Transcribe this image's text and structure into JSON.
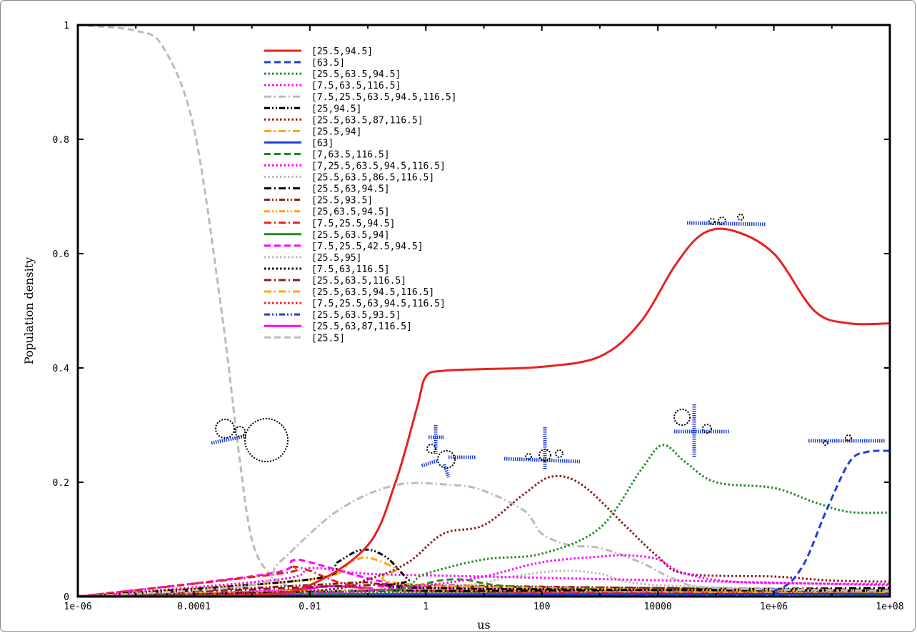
{
  "chart_data": {
    "type": "line",
    "xlabel": "us",
    "ylabel": "Population density",
    "xscale": "log",
    "xlim": [
      1e-06,
      100000000.0
    ],
    "ylim": [
      0,
      1
    ],
    "xticks": [
      "1e-06",
      "0.0001",
      "0.01",
      "1",
      "100",
      "10000",
      "1e+06",
      "1e+08"
    ],
    "yticks": [
      "0",
      "0.2",
      "0.4",
      "0.6",
      "0.8",
      "1"
    ],
    "legend_position": "top-left",
    "series": [
      {
        "name": "[25.5,94.5]",
        "color": "#e8211f",
        "dash": "solid",
        "points": [
          [
            1e-06,
            0.001
          ],
          [
            0.001,
            0.003
          ],
          [
            0.01,
            0.02
          ],
          [
            0.1,
            0.09
          ],
          [
            0.3,
            0.2
          ],
          [
            0.7,
            0.33
          ],
          [
            1,
            0.385
          ],
          [
            2,
            0.395
          ],
          [
            10,
            0.398
          ],
          [
            100,
            0.402
          ],
          [
            1000,
            0.42
          ],
          [
            5000,
            0.48
          ],
          [
            20000,
            0.58
          ],
          [
            60000,
            0.635
          ],
          [
            200000,
            0.64
          ],
          [
            1000000,
            0.6
          ],
          [
            5000000,
            0.5
          ],
          [
            20000000,
            0.478
          ],
          [
            100000000,
            0.478
          ]
        ]
      },
      {
        "name": "[63.5]",
        "color": "#1f3fd8",
        "dash": "dashed",
        "points": [
          [
            1e-06,
            0
          ],
          [
            100000,
            0.003
          ],
          [
            1000000,
            0.01
          ],
          [
            3000000,
            0.05
          ],
          [
            8000000,
            0.15
          ],
          [
            20000000,
            0.235
          ],
          [
            40000000,
            0.253
          ],
          [
            100000000,
            0.255
          ]
        ]
      },
      {
        "name": "[25.5,63.5,94.5]",
        "color": "#228b22",
        "dash": "dotted",
        "points": [
          [
            1e-06,
            0
          ],
          [
            0.1,
            0.005
          ],
          [
            1,
            0.04
          ],
          [
            10,
            0.065
          ],
          [
            100,
            0.075
          ],
          [
            1000,
            0.12
          ],
          [
            5000,
            0.22
          ],
          [
            12000,
            0.265
          ],
          [
            30000,
            0.235
          ],
          [
            100000,
            0.2
          ],
          [
            1000000,
            0.19
          ],
          [
            5000000,
            0.165
          ],
          [
            20000000,
            0.148
          ],
          [
            100000000,
            0.147
          ]
        ]
      },
      {
        "name": "[7.5,63.5,116.5]",
        "color": "#ff00ff",
        "dash": "dotted",
        "points": [
          [
            1e-06,
            0
          ],
          [
            0.01,
            0.005
          ],
          [
            1,
            0.02
          ],
          [
            10,
            0.035
          ],
          [
            100,
            0.06
          ],
          [
            1000,
            0.07
          ],
          [
            3000,
            0.072
          ],
          [
            10000,
            0.065
          ],
          [
            30000,
            0.04
          ],
          [
            300000,
            0.025
          ],
          [
            100000000,
            0.022
          ]
        ]
      },
      {
        "name": "[7.5,25.5,63.5,94.5,116.5]",
        "color": "#bbbbbb",
        "dash": "dashdot",
        "points": [
          [
            1e-06,
            0
          ],
          [
            0.001,
            0.02
          ],
          [
            0.003,
            0.06
          ],
          [
            0.03,
            0.15
          ],
          [
            0.3,
            0.195
          ],
          [
            3,
            0.195
          ],
          [
            10,
            0.185
          ],
          [
            50,
            0.15
          ],
          [
            100,
            0.11
          ],
          [
            300,
            0.09
          ],
          [
            1000,
            0.085
          ],
          [
            5000,
            0.06
          ],
          [
            20000,
            0.03
          ],
          [
            100000,
            0.015
          ],
          [
            100000000,
            0.01
          ]
        ]
      },
      {
        "name": "[25,94.5]",
        "color": "#000000",
        "dash": "dashdotdot",
        "points": [
          [
            1e-06,
            0
          ],
          [
            0.01,
            0.03
          ],
          [
            0.03,
            0.06
          ],
          [
            0.08,
            0.082
          ],
          [
            0.2,
            0.07
          ],
          [
            0.5,
            0.03
          ],
          [
            1,
            0.015
          ],
          [
            100000000,
            0.01
          ]
        ]
      },
      {
        "name": "[25.5,63.5,87,116.5]",
        "color": "#8b1a1a",
        "dash": "dotted",
        "points": [
          [
            1e-06,
            0
          ],
          [
            0.01,
            0.01
          ],
          [
            0.1,
            0.03
          ],
          [
            0.5,
            0.06
          ],
          [
            2,
            0.11
          ],
          [
            10,
            0.125
          ],
          [
            50,
            0.18
          ],
          [
            150,
            0.21
          ],
          [
            500,
            0.195
          ],
          [
            3000,
            0.12
          ],
          [
            10000,
            0.07
          ],
          [
            30000,
            0.04
          ],
          [
            1000000,
            0.035
          ],
          [
            10000000,
            0.028
          ],
          [
            100000000,
            0.026
          ]
        ]
      },
      {
        "name": "[25.5,94]",
        "color": "#ffa500",
        "dash": "dashdot",
        "points": [
          [
            1e-06,
            0
          ],
          [
            0.01,
            0.03
          ],
          [
            0.05,
            0.06
          ],
          [
            0.1,
            0.068
          ],
          [
            0.3,
            0.05
          ],
          [
            1,
            0.02
          ],
          [
            100000000,
            0.008
          ]
        ]
      },
      {
        "name": "[63]",
        "color": "#1f3fd8",
        "dash": "solid",
        "points": [
          [
            1e-06,
            0
          ],
          [
            1,
            0.003
          ],
          [
            100000000,
            0.005
          ]
        ]
      },
      {
        "name": "[7,63.5,116.5]",
        "color": "#228b22",
        "dash": "dashed",
        "points": [
          [
            1e-06,
            0
          ],
          [
            0.1,
            0.01
          ],
          [
            3,
            0.03
          ],
          [
            100,
            0.015
          ],
          [
            100000000,
            0.01
          ]
        ]
      },
      {
        "name": "[7,25.5,63.5,94.5,116.5]",
        "color": "#ff00ff",
        "dash": "dotted",
        "points": [
          [
            1e-06,
            0
          ],
          [
            0.003,
            0.03
          ],
          [
            0.01,
            0.05
          ],
          [
            0.1,
            0.04
          ],
          [
            10,
            0.035
          ],
          [
            100000000,
            0.02
          ]
        ]
      },
      {
        "name": "[25.5,63.5,86.5,116.5]",
        "color": "#bbbbbb",
        "dash": "dotted",
        "points": [
          [
            1e-06,
            0
          ],
          [
            1,
            0.015
          ],
          [
            30,
            0.035
          ],
          [
            200,
            0.045
          ],
          [
            1000,
            0.04
          ],
          [
            10000,
            0.02
          ],
          [
            100000000,
            0.01
          ]
        ]
      },
      {
        "name": "[25.5,63,94.5]",
        "color": "#000000",
        "dash": "dashdot",
        "points": [
          [
            1e-06,
            0
          ],
          [
            0.1,
            0.01
          ],
          [
            10,
            0.01
          ],
          [
            100000000,
            0.015
          ]
        ]
      },
      {
        "name": "[25.5,93.5]",
        "color": "#8b1a1a",
        "dash": "dashdotdot",
        "points": [
          [
            1e-06,
            0
          ],
          [
            0.01,
            0.02
          ],
          [
            0.1,
            0.025
          ],
          [
            1,
            0.02
          ],
          [
            100000000,
            0.01
          ]
        ]
      },
      {
        "name": "[25,63.5,94.5]",
        "color": "#ffa500",
        "dash": "dashdotdot",
        "points": [
          [
            1e-06,
            0
          ],
          [
            0.01,
            0.01
          ],
          [
            1,
            0.012
          ],
          [
            100000000,
            0.006
          ]
        ]
      },
      {
        "name": "[7.5,25.5,94.5]",
        "color": "#e8211f",
        "dash": "dashdot",
        "points": [
          [
            1e-06,
            0
          ],
          [
            0.003,
            0.04
          ],
          [
            0.005,
            0.052
          ],
          [
            0.01,
            0.045
          ],
          [
            0.05,
            0.02
          ],
          [
            1,
            0.01
          ],
          [
            100000000,
            0.005
          ]
        ]
      },
      {
        "name": "[25.5,63.5,94]",
        "color": "#228b22",
        "dash": "solid",
        "points": [
          [
            1e-06,
            0
          ],
          [
            1,
            0.005
          ],
          [
            100000000,
            0.004
          ]
        ]
      },
      {
        "name": "[7.5,25.5,42.5,94.5]",
        "color": "#ff00ff",
        "dash": "dashed",
        "points": [
          [
            1e-06,
            0
          ],
          [
            0.002,
            0.04
          ],
          [
            0.005,
            0.063
          ],
          [
            0.01,
            0.06
          ],
          [
            0.05,
            0.04
          ],
          [
            0.2,
            0.025
          ],
          [
            1,
            0.015
          ],
          [
            100000000,
            0.008
          ]
        ]
      },
      {
        "name": "[25.5,95]",
        "color": "#bbbbbb",
        "dash": "dotted",
        "points": [
          [
            1e-06,
            0
          ],
          [
            0.01,
            0.01
          ],
          [
            1,
            0.01
          ],
          [
            100000000,
            0.006
          ]
        ]
      },
      {
        "name": "[7.5,63,116.5]",
        "color": "#000000",
        "dash": "dotted",
        "points": [
          [
            1e-06,
            0
          ],
          [
            1,
            0.005
          ],
          [
            100000000,
            0.004
          ]
        ]
      },
      {
        "name": "[25.5,63.5,116.5]",
        "color": "#8b1a1a",
        "dash": "dashdot",
        "points": [
          [
            1e-06,
            0
          ],
          [
            0.1,
            0.02
          ],
          [
            1,
            0.018
          ],
          [
            100000000,
            0.012
          ]
        ]
      },
      {
        "name": "[25.5,63.5,94.5,116.5]",
        "color": "#ffa500",
        "dash": "dashdot",
        "points": [
          [
            1e-06,
            0
          ],
          [
            1,
            0.005
          ],
          [
            100000000,
            0.005
          ]
        ]
      },
      {
        "name": "[7.5,25.5,63,94.5,116.5]",
        "color": "#e8211f",
        "dash": "dotted",
        "points": [
          [
            1e-06,
            0
          ],
          [
            0.01,
            0.008
          ],
          [
            1,
            0.006
          ],
          [
            100000000,
            0.004
          ]
        ]
      },
      {
        "name": "[25.5,63.5,93.5]",
        "color": "#1f3fd8",
        "dash": "dashdotdot",
        "points": [
          [
            1e-06,
            0
          ],
          [
            1,
            0.003
          ],
          [
            100000000,
            0.004
          ]
        ]
      },
      {
        "name": "[25.5,63,87,116.5]",
        "color": "#ff00ff",
        "dash": "solid",
        "points": [
          [
            1e-06,
            0
          ],
          [
            0.003,
            0.01
          ],
          [
            0.02,
            0.018
          ],
          [
            0.1,
            0.015
          ],
          [
            1,
            0.01
          ],
          [
            100000000,
            0.006
          ]
        ]
      },
      {
        "name": "[25.5]",
        "color": "#bbbbbb",
        "dash": "dashed",
        "points": [
          [
            1e-06,
            1
          ],
          [
            1e-05,
            0.99
          ],
          [
            3e-05,
            0.96
          ],
          [
            0.0001,
            0.82
          ],
          [
            0.0003,
            0.5
          ],
          [
            0.0006,
            0.25
          ],
          [
            0.001,
            0.1
          ],
          [
            0.002,
            0.04
          ],
          [
            0.005,
            0.015
          ],
          [
            0.01,
            0.008
          ],
          [
            1,
            0.004
          ],
          [
            100000000,
            0.003
          ]
        ]
      }
    ]
  }
}
